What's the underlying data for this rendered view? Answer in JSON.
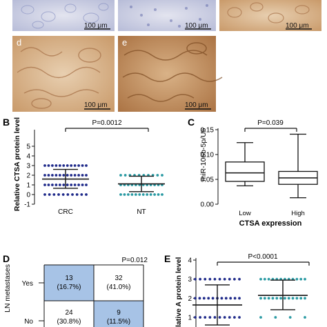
{
  "panels": {
    "images": [
      {
        "letter": "",
        "scale": "100 μm"
      },
      {
        "letter": "",
        "scale": "100 μm"
      },
      {
        "letter": "",
        "scale": "100 μm"
      },
      {
        "letter": "d",
        "scale": "100 μm"
      },
      {
        "letter": "e",
        "scale": "100 μm"
      }
    ],
    "B": {
      "letter": "B",
      "p_text": "P=0.0012"
    },
    "C": {
      "letter": "C",
      "p_text": "P=0.039"
    },
    "D": {
      "letter": "D",
      "p_text": "P=0.012"
    },
    "E": {
      "letter": "E",
      "p_text": "P<0.0001"
    }
  },
  "colors": {
    "navy": "#1f2a8a",
    "teal": "#2a9aa3",
    "table_blue": "#a7c3e6",
    "tissue_brown": "#c99a6a",
    "tissue_blue": "#8c95c4"
  },
  "chart_data": [
    {
      "panel": "B",
      "type": "scatter",
      "categories": [
        "CRC",
        "NT"
      ],
      "ylabel": "Relative CTSA protein level",
      "ylim": [
        -1,
        5
      ],
      "yticks": [
        -1,
        0,
        1,
        2,
        3,
        4,
        5
      ],
      "series": [
        {
          "category": "CRC",
          "mean": 1.6,
          "sd_low": 0.65,
          "sd_high": 2.6,
          "levels": [
            {
              "y": 3,
              "n": 12
            },
            {
              "y": 2,
              "n": 12
            },
            {
              "y": 1,
              "n": 12
            },
            {
              "y": 0,
              "n": 10
            }
          ]
        },
        {
          "category": "NT",
          "mean": 1.1,
          "sd_low": 0.3,
          "sd_high": 1.9,
          "levels": [
            {
              "y": 2,
              "n": 10
            },
            {
              "y": 1,
              "n": 12
            },
            {
              "y": 0,
              "n": 12
            }
          ]
        }
      ],
      "p_value": "P=0.0012"
    },
    {
      "panel": "C",
      "type": "box",
      "categories": [
        "Low",
        "High"
      ],
      "xlabel": "CTSA expression",
      "ylabel": "miR-106b-5p/U6",
      "ylim": [
        0,
        0.15
      ],
      "yticks": [
        0.0,
        0.05,
        0.1,
        0.15
      ],
      "boxes": [
        {
          "category": "Low",
          "min": 0.037,
          "q1": 0.046,
          "median": 0.063,
          "q3": 0.085,
          "max": 0.124
        },
        {
          "category": "High",
          "min": 0.013,
          "q1": 0.04,
          "median": 0.053,
          "q3": 0.066,
          "max": 0.141
        }
      ],
      "p_value": "P=0.039"
    },
    {
      "panel": "D",
      "type": "table",
      "row_label": "LN metastases",
      "rows": [
        "Yes",
        "No"
      ],
      "cells": [
        [
          {
            "count": "13",
            "pct": "(16.7%)"
          },
          {
            "count": "32",
            "pct": "(41.0%)"
          }
        ],
        [
          {
            "count": "24",
            "pct": "(30.8%)"
          },
          {
            "count": "9",
            "pct": "(11.5%)"
          }
        ]
      ],
      "p_value": "P=0.012"
    },
    {
      "panel": "E",
      "type": "scatter",
      "ylabel": "Relative A protein level",
      "ylim": [
        1,
        4
      ],
      "yticks": [
        1,
        2,
        3,
        4
      ],
      "series": [
        {
          "mean": 1.65,
          "sd_low": 0.6,
          "sd_high": 2.7,
          "levels": [
            {
              "y": 3,
              "n": 10
            },
            {
              "y": 2,
              "n": 11
            },
            {
              "y": 1,
              "n": 10
            }
          ]
        },
        {
          "mean": 2.15,
          "sd_low": 1.4,
          "sd_high": 2.95,
          "levels": [
            {
              "y": 3,
              "n": 12
            },
            {
              "y": 2,
              "n": 12
            },
            {
              "y": 1,
              "n": 4
            }
          ]
        }
      ],
      "p_value": "P<0.0001"
    }
  ]
}
